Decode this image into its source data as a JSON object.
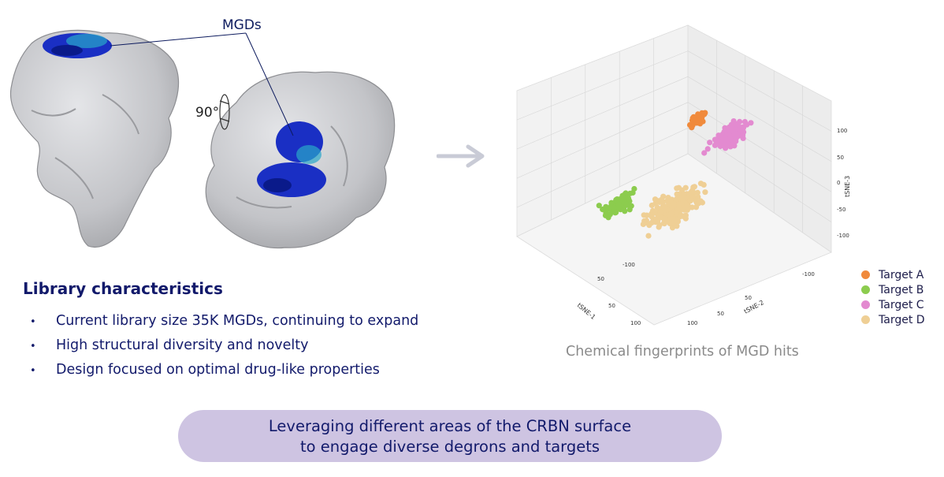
{
  "labels": {
    "mgds": "MGDs",
    "rotation": "90°"
  },
  "library": {
    "title": "Library characteristics",
    "bullets": [
      "Current library size 35K MGDs, continuing to expand",
      "High structural diversity and novelty",
      "Design focused on optimal drug-like properties"
    ]
  },
  "caption": "Chemical fingerprints of MGD hits",
  "banner": {
    "line1": "Leveraging different areas of the CRBN surface",
    "line2": "to engage diverse degrons and targets"
  },
  "colors": {
    "target_a": "#f08a3c",
    "target_b": "#8ccc4e",
    "target_c": "#e38ad0",
    "target_d": "#efcf95",
    "protein": "#c8c9cc",
    "ligand": "#1a2fc4",
    "banner": "#cec4e2",
    "text_dark": "#121a6b"
  },
  "chart_data": {
    "type": "scatter",
    "projection": "3d",
    "xlabel": "tSNE-1",
    "ylabel": "tSNE-2",
    "zlabel": "tSNE-3",
    "x_ticks": [
      "-100",
      "50",
      "50",
      "100"
    ],
    "y_ticks": [
      "100",
      "50",
      "50",
      "-100"
    ],
    "z_ticks": [
      "100",
      "50",
      "0",
      "-50",
      "-100"
    ],
    "legend": [
      "Target A",
      "Target B",
      "Target C",
      "Target D"
    ],
    "legend_position": "right",
    "series": [
      {
        "name": "Target A",
        "cluster_center": [
          20,
          -60,
          110
        ],
        "approx_points": 35
      },
      {
        "name": "Target B",
        "cluster_center": [
          80,
          40,
          20
        ],
        "approx_points": 70
      },
      {
        "name": "Target C",
        "cluster_center": [
          -50,
          -60,
          50
        ],
        "approx_points": 130
      },
      {
        "name": "Target D",
        "cluster_center": [
          10,
          0,
          -40
        ],
        "approx_points": 240
      }
    ]
  }
}
